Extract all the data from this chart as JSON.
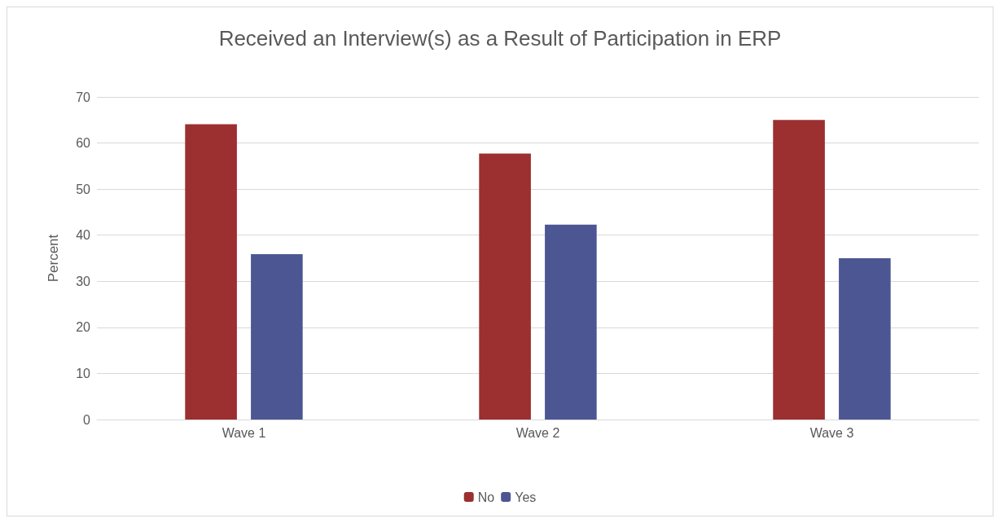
{
  "chart_data": {
    "type": "bar",
    "title": "Received an Interview(s) as a Result of Participation in ERP",
    "ylabel": "Percent",
    "categories": [
      "Wave 1",
      "Wave 2",
      "Wave 3"
    ],
    "series": [
      {
        "name": "No",
        "color": "#9c2f2f",
        "values": [
          64.1,
          57.7,
          65.0
        ]
      },
      {
        "name": "Yes",
        "color": "#4c5693",
        "values": [
          35.9,
          42.3,
          35.0
        ]
      }
    ],
    "ylim": [
      0,
      70
    ],
    "yticks": [
      0,
      10,
      20,
      30,
      40,
      50,
      60,
      70
    ],
    "grid": "y",
    "legend": "bottom"
  }
}
